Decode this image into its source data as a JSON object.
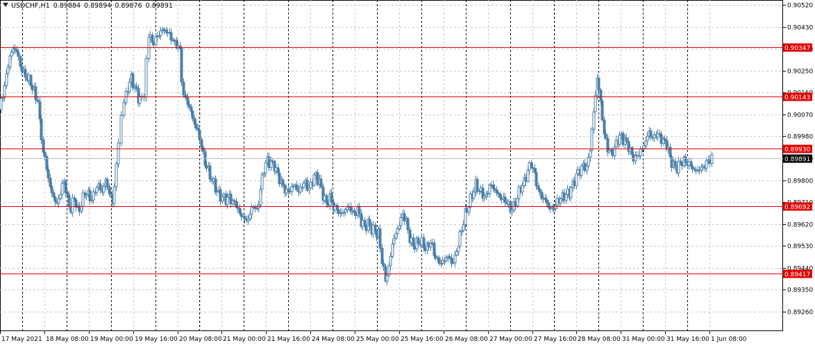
{
  "header": {
    "symbol": "USDCHF,H1",
    "open": "0.89884",
    "high": "0.89894",
    "low": "0.89876",
    "close": "0.89891"
  },
  "colors": {
    "candle": "#4a7fa8",
    "level_line": "#e00000",
    "level_label_bg": "#e00000",
    "level_label_text": "#ffffff",
    "price_line": "#b8b8c8",
    "price_label_bg": "#000000",
    "price_label_text": "#ffffff",
    "grid": "#c8c8c8",
    "day_separator": "#000000"
  },
  "chart_data": {
    "type": "candlestick",
    "ylim": [
      0.8918,
      0.9054
    ],
    "y_ticks": [
      "0.90520",
      "0.90430",
      "0.90340",
      "0.90250",
      "0.90160",
      "0.90070",
      "0.89980",
      "0.89890",
      "0.89800",
      "0.89710",
      "0.89620",
      "0.89530",
      "0.89440",
      "0.89350",
      "0.89260"
    ],
    "x_ticks": [
      "17 May 2021",
      "18 May 08:00",
      "19 May 00:00",
      "19 May 16:00",
      "20 May 08:00",
      "21 May 00:00",
      "21 May 16:00",
      "24 May 08:00",
      "25 May 00:00",
      "25 May 16:00",
      "26 May 08:00",
      "27 May 00:00",
      "27 May 16:00",
      "28 May 08:00",
      "31 May 00:00",
      "31 May 16:00",
      "1 Jun 08:00"
    ],
    "levels": [
      {
        "price": 0.90347,
        "label": "0.90347"
      },
      {
        "price": 0.90143,
        "label": "0.90143"
      },
      {
        "price": 0.8993,
        "label": "0.89930"
      },
      {
        "price": 0.89692,
        "label": "0.89692"
      },
      {
        "price": 0.89417,
        "label": "0.89417"
      }
    ],
    "current_price": {
      "price": 0.89891,
      "label": "0.89891"
    },
    "path": [
      [
        0,
        0.9009
      ],
      [
        5,
        0.9015
      ],
      [
        10,
        0.9023
      ],
      [
        15,
        0.9031
      ],
      [
        20,
        0.9034
      ],
      [
        25,
        0.9033
      ],
      [
        30,
        0.9027
      ],
      [
        35,
        0.9024
      ],
      [
        40,
        0.9022
      ],
      [
        45,
        0.902
      ],
      [
        50,
        0.9016
      ],
      [
        55,
        0.9013
      ],
      [
        58,
        0.9003
      ],
      [
        63,
        0.8992
      ],
      [
        68,
        0.8985
      ],
      [
        73,
        0.8977
      ],
      [
        78,
        0.8973
      ],
      [
        83,
        0.897
      ],
      [
        88,
        0.8975
      ],
      [
        93,
        0.898
      ],
      [
        98,
        0.8972
      ],
      [
        103,
        0.8968
      ],
      [
        108,
        0.8973
      ],
      [
        113,
        0.8967
      ],
      [
        118,
        0.897
      ],
      [
        123,
        0.8975
      ],
      [
        128,
        0.8974
      ],
      [
        133,
        0.8972
      ],
      [
        138,
        0.8976
      ],
      [
        143,
        0.8978
      ],
      [
        148,
        0.8975
      ],
      [
        153,
        0.898
      ],
      [
        158,
        0.8975
      ],
      [
        163,
        0.8971
      ],
      [
        168,
        0.8985
      ],
      [
        172,
        0.8996
      ],
      [
        176,
        0.9005
      ],
      [
        180,
        0.9012
      ],
      [
        185,
        0.9018
      ],
      [
        190,
        0.9022
      ],
      [
        195,
        0.9018
      ],
      [
        200,
        0.9014
      ],
      [
        205,
        0.9013
      ],
      [
        208,
        0.9016
      ],
      [
        212,
        0.903
      ],
      [
        215,
        0.9041
      ],
      [
        220,
        0.9036
      ],
      [
        225,
        0.9038
      ],
      [
        230,
        0.904
      ],
      [
        235,
        0.9042
      ],
      [
        240,
        0.9041
      ],
      [
        245,
        0.904
      ],
      [
        250,
        0.9037
      ],
      [
        255,
        0.9036
      ],
      [
        260,
        0.9033
      ],
      [
        262,
        0.9022
      ],
      [
        266,
        0.9014
      ],
      [
        271,
        0.9012
      ],
      [
        276,
        0.9008
      ],
      [
        281,
        0.9003
      ],
      [
        286,
        0.9
      ],
      [
        291,
        0.8994
      ],
      [
        296,
        0.8987
      ],
      [
        301,
        0.8984
      ],
      [
        306,
        0.898
      ],
      [
        311,
        0.8977
      ],
      [
        316,
        0.8974
      ],
      [
        321,
        0.8973
      ],
      [
        326,
        0.8972
      ],
      [
        331,
        0.8973
      ],
      [
        336,
        0.8971
      ],
      [
        341,
        0.897
      ],
      [
        346,
        0.8966
      ],
      [
        351,
        0.8965
      ],
      [
        356,
        0.8963
      ],
      [
        361,
        0.8966
      ],
      [
        366,
        0.897
      ],
      [
        371,
        0.8967
      ],
      [
        376,
        0.8976
      ],
      [
        381,
        0.8985
      ],
      [
        386,
        0.8988
      ],
      [
        391,
        0.8987
      ],
      [
        396,
        0.8986
      ],
      [
        401,
        0.8982
      ],
      [
        406,
        0.8979
      ],
      [
        411,
        0.8976
      ],
      [
        416,
        0.8975
      ],
      [
        421,
        0.8977
      ],
      [
        426,
        0.8978
      ],
      [
        431,
        0.8975
      ],
      [
        436,
        0.8978
      ],
      [
        441,
        0.8979
      ],
      [
        446,
        0.8976
      ],
      [
        451,
        0.898
      ],
      [
        456,
        0.8982
      ],
      [
        461,
        0.8979
      ],
      [
        466,
        0.8974
      ],
      [
        471,
        0.897
      ],
      [
        476,
        0.8973
      ],
      [
        481,
        0.8969
      ],
      [
        486,
        0.8968
      ],
      [
        491,
        0.8966
      ],
      [
        496,
        0.8967
      ],
      [
        501,
        0.8969
      ],
      [
        506,
        0.8968
      ],
      [
        511,
        0.8966
      ],
      [
        516,
        0.8968
      ],
      [
        521,
        0.8963
      ],
      [
        526,
        0.8961
      ],
      [
        531,
        0.8962
      ],
      [
        536,
        0.896
      ],
      [
        541,
        0.8959
      ],
      [
        546,
        0.8958
      ],
      [
        551,
        0.8947
      ],
      [
        556,
        0.8939
      ],
      [
        561,
        0.8944
      ],
      [
        566,
        0.8954
      ],
      [
        571,
        0.8958
      ],
      [
        576,
        0.8962
      ],
      [
        581,
        0.8966
      ],
      [
        586,
        0.8963
      ],
      [
        591,
        0.8956
      ],
      [
        596,
        0.8953
      ],
      [
        601,
        0.8954
      ],
      [
        606,
        0.8955
      ],
      [
        611,
        0.8953
      ],
      [
        616,
        0.8952
      ],
      [
        621,
        0.8955
      ],
      [
        626,
        0.895
      ],
      [
        631,
        0.8947
      ],
      [
        636,
        0.8946
      ],
      [
        641,
        0.8947
      ],
      [
        646,
        0.8949
      ],
      [
        651,
        0.8946
      ],
      [
        656,
        0.8948
      ],
      [
        661,
        0.8954
      ],
      [
        666,
        0.896
      ],
      [
        671,
        0.8966
      ],
      [
        676,
        0.897
      ],
      [
        681,
        0.8974
      ],
      [
        686,
        0.8978
      ],
      [
        691,
        0.8976
      ],
      [
        696,
        0.8974
      ],
      [
        701,
        0.8973
      ],
      [
        706,
        0.8978
      ],
      [
        711,
        0.8977
      ],
      [
        716,
        0.8975
      ],
      [
        721,
        0.8973
      ],
      [
        726,
        0.8972
      ],
      [
        731,
        0.8971
      ],
      [
        736,
        0.8968
      ],
      [
        741,
        0.8969
      ],
      [
        746,
        0.8973
      ],
      [
        751,
        0.8977
      ],
      [
        756,
        0.8979
      ],
      [
        761,
        0.8984
      ],
      [
        766,
        0.8987
      ],
      [
        771,
        0.8982
      ],
      [
        776,
        0.8976
      ],
      [
        781,
        0.8973
      ],
      [
        786,
        0.8972
      ],
      [
        791,
        0.8969
      ],
      [
        796,
        0.8968
      ],
      [
        801,
        0.897
      ],
      [
        806,
        0.8972
      ],
      [
        811,
        0.8973
      ],
      [
        816,
        0.8974
      ],
      [
        821,
        0.8975
      ],
      [
        826,
        0.8978
      ],
      [
        831,
        0.8982
      ],
      [
        836,
        0.8984
      ],
      [
        841,
        0.8986
      ],
      [
        846,
        0.8985
      ],
      [
        851,
        0.8993
      ],
      [
        856,
        0.9008
      ],
      [
        861,
        0.9022
      ],
      [
        866,
        0.9012
      ],
      [
        871,
        0.8999
      ],
      [
        876,
        0.8993
      ],
      [
        881,
        0.8991
      ],
      [
        886,
        0.8993
      ],
      [
        891,
        0.8997
      ],
      [
        896,
        0.8998
      ],
      [
        901,
        0.8996
      ],
      [
        906,
        0.8994
      ],
      [
        911,
        0.899
      ],
      [
        916,
        0.8989
      ],
      [
        921,
        0.8991
      ],
      [
        926,
        0.8993
      ],
      [
        931,
        0.8996
      ],
      [
        936,
        0.9
      ],
      [
        941,
        0.8997
      ],
      [
        946,
        0.8999
      ],
      [
        951,
        0.8998
      ],
      [
        956,
        0.8996
      ],
      [
        961,
        0.8995
      ],
      [
        966,
        0.8989
      ],
      [
        971,
        0.8986
      ],
      [
        976,
        0.8985
      ],
      [
        981,
        0.8987
      ],
      [
        986,
        0.8988
      ],
      [
        991,
        0.8987
      ],
      [
        996,
        0.8986
      ],
      [
        1001,
        0.8984
      ],
      [
        1006,
        0.8984
      ],
      [
        1011,
        0.8985
      ],
      [
        1016,
        0.8986
      ],
      [
        1021,
        0.8988
      ],
      [
        1026,
        0.8989
      ]
    ]
  }
}
